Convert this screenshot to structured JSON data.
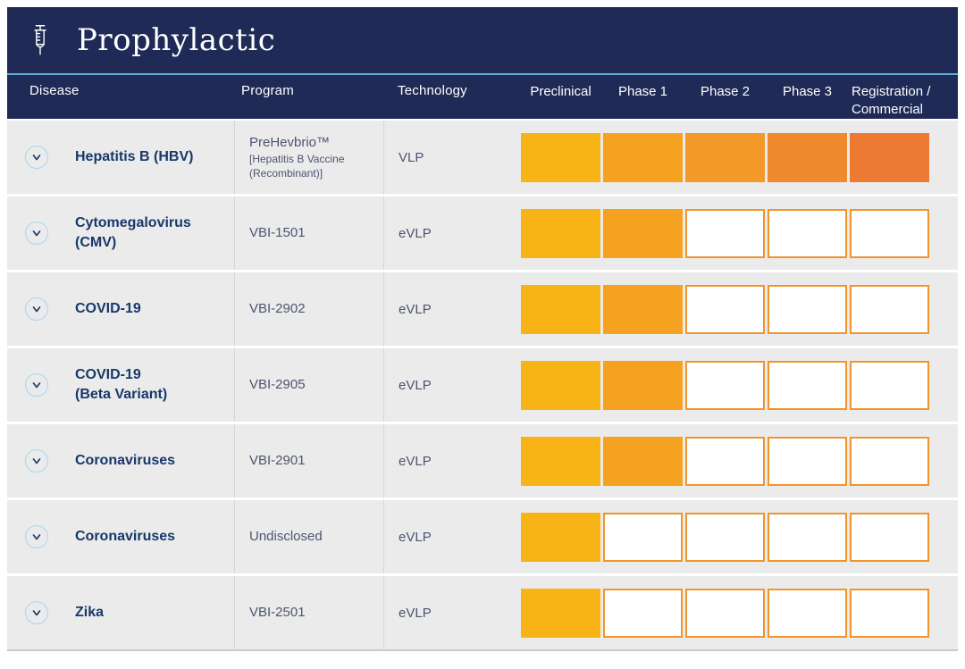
{
  "header": {
    "title": "Prophylactic",
    "icon": "syringe-icon"
  },
  "columns": {
    "disease": "Disease",
    "program": "Program",
    "technology": "Technology",
    "phases": [
      "Preclinical",
      "Phase 1",
      "Phase 2",
      "Phase 3",
      "Registration / Commercial"
    ]
  },
  "rows": [
    {
      "disease": "Hepatitis B (HBV)",
      "program": "PreHevbrio™",
      "program_sub": "[Hepatitis B Vaccine (Recombinant)]",
      "technology": "VLP",
      "filled": 5
    },
    {
      "disease": "Cytomegalovirus (CMV)",
      "program": "VBI-1501",
      "program_sub": "",
      "technology": "eVLP",
      "filled": 2
    },
    {
      "disease": "COVID-19",
      "program": "VBI-2902",
      "program_sub": "",
      "technology": "eVLP",
      "filled": 2
    },
    {
      "disease": "COVID-19\n(Beta Variant)",
      "program": "VBI-2905",
      "program_sub": "",
      "technology": "eVLP",
      "filled": 2
    },
    {
      "disease": "Coronaviruses",
      "program": "VBI-2901",
      "program_sub": "",
      "technology": "eVLP",
      "filled": 2
    },
    {
      "disease": "Coronaviruses",
      "program": "Undisclosed",
      "program_sub": "",
      "technology": "eVLP",
      "filled": 1
    },
    {
      "disease": "Zika",
      "program": "VBI-2501",
      "program_sub": "",
      "technology": "eVLP",
      "filled": 1
    }
  ],
  "icons": {
    "row_toggle": "chevron-down-icon"
  },
  "colors": {
    "header_navy": "#1f2a56",
    "divider_cyan": "#63aed8",
    "row_background": "#ebebeb",
    "disease_text": "#17386a",
    "body_text": "#4d5470",
    "empty_block_border": "#f0952d",
    "phase_palette": [
      "#f8b317",
      "#f5a221",
      "#f2992a",
      "#ef8b2e",
      "#ec7a33"
    ]
  }
}
